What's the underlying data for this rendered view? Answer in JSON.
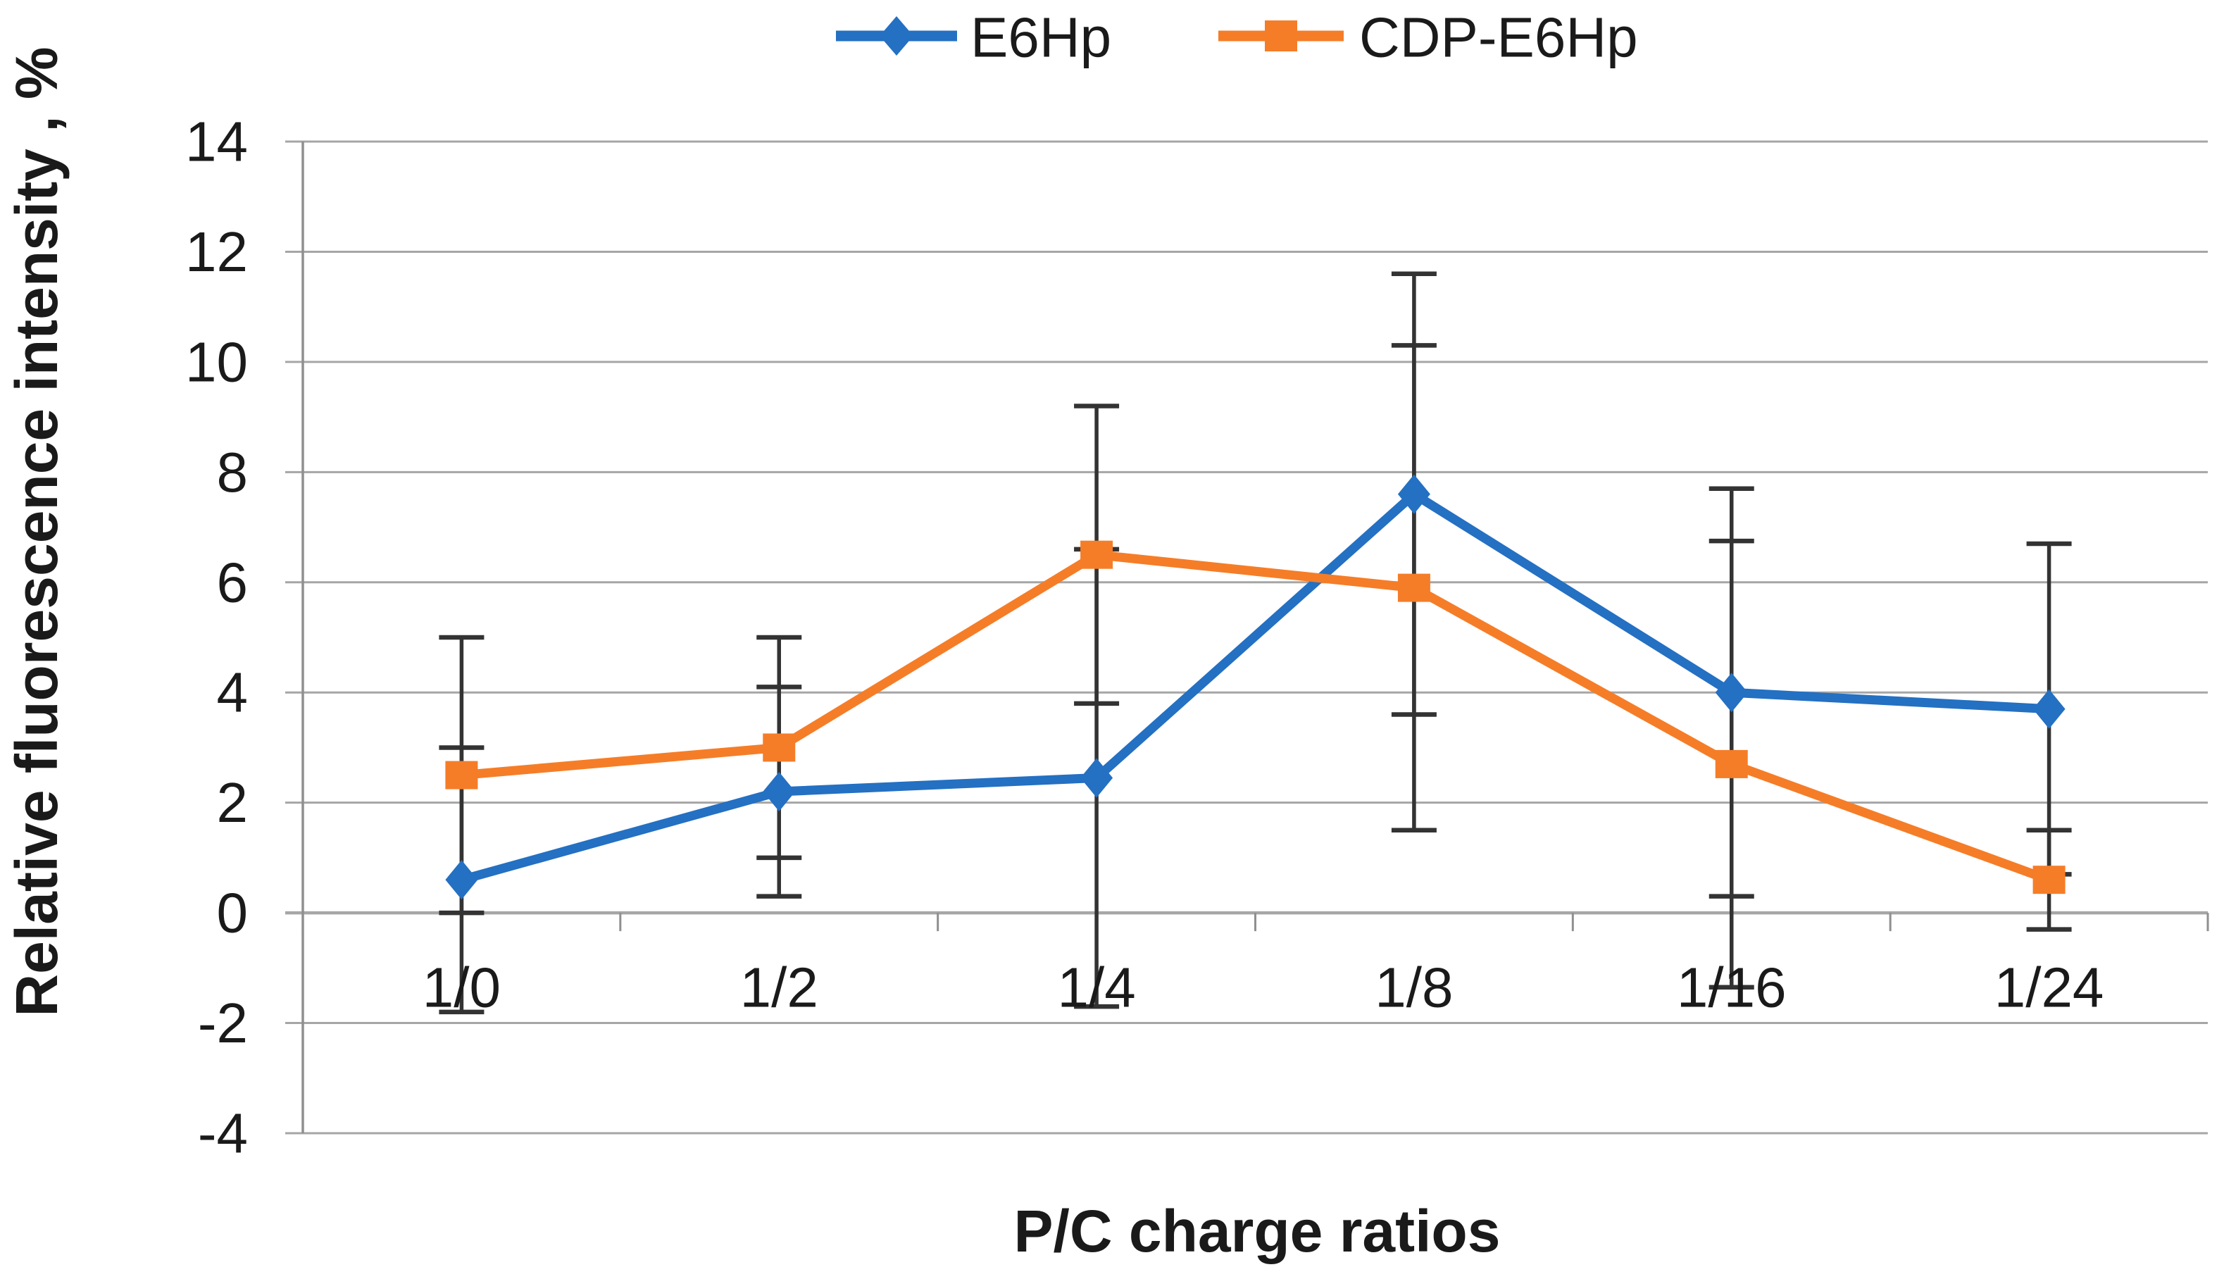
{
  "figure": {
    "background": "#FFFFFF"
  },
  "legend": {
    "items": [
      {
        "label": "E6Hp",
        "marker": "diamond"
      },
      {
        "label": "CDP-E6Hp",
        "marker": "square"
      }
    ]
  },
  "y_axis": {
    "title": "Relative fluorescence intensity , %",
    "tick_labels": [
      "14",
      "12",
      "10",
      "8",
      "6",
      "4",
      "2",
      "0",
      "-2",
      "-4"
    ]
  },
  "x_axis": {
    "title": "P/C charge ratios",
    "tick_labels": [
      "1/0",
      "1/2",
      "1/4",
      "1/8",
      "1/16",
      "1/24"
    ]
  },
  "colors": {
    "series_e6hp": "#2470C2",
    "series_cdp_e6hp": "#F57D28",
    "gridline": "#A6A6A6",
    "axis_line": "#8F8F8F",
    "error_bar": "#333333",
    "text": "#1A1A1A"
  },
  "chart_data": {
    "type": "line",
    "categories": [
      "1/0",
      "1/2",
      "1/4",
      "1/8",
      "1/16",
      "1/24"
    ],
    "series": [
      {
        "name": "E6Hp",
        "color": "#2470C2",
        "marker": "diamond",
        "values": [
          0.6,
          2.2,
          2.45,
          7.6,
          4.0,
          3.7
        ],
        "yerr": [
          2.4,
          1.9,
          4.15,
          4.0,
          3.7,
          3.0
        ]
      },
      {
        "name": "CDP-E6Hp",
        "color": "#F57D28",
        "marker": "square",
        "values": [
          2.5,
          3.0,
          6.5,
          5.9,
          2.7,
          0.6
        ],
        "yerr": [
          2.5,
          2.0,
          2.7,
          4.4,
          4.05,
          0.9
        ]
      }
    ],
    "title": "",
    "xlabel": "P/C charge ratios",
    "ylabel": "Relative fluorescence intensity , %",
    "ylim": [
      -4,
      14
    ],
    "ytick_step": 2,
    "grid": true,
    "legend_position": "top-center",
    "error_bars": true
  }
}
